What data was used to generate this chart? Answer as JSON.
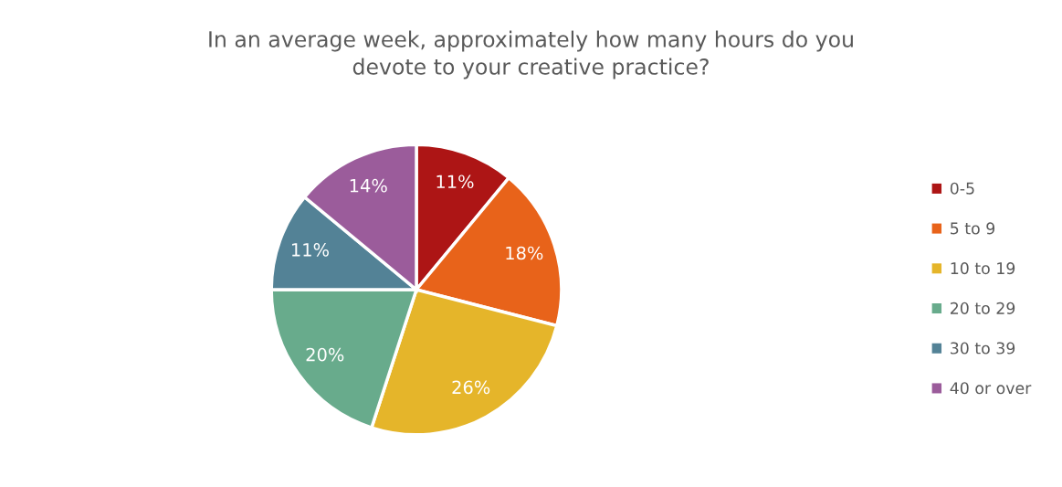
{
  "chart_data": {
    "type": "pie",
    "title": "In an average week, approximately how many hours do you\ndevote to your creative practice?",
    "categories": [
      "0-5",
      "5 to 9",
      "10 to 19",
      "20 to 29",
      "30 to 39",
      "40 or over"
    ],
    "values": [
      11,
      18,
      26,
      20,
      11,
      14
    ],
    "colors": [
      "#ad1515",
      "#e8631a",
      "#e5b52a",
      "#68ab8c",
      "#538296",
      "#9b5c9b"
    ],
    "value_labels": [
      "11%",
      "18%",
      "26%",
      "20%",
      "11%",
      "14%"
    ],
    "legend": "right"
  }
}
